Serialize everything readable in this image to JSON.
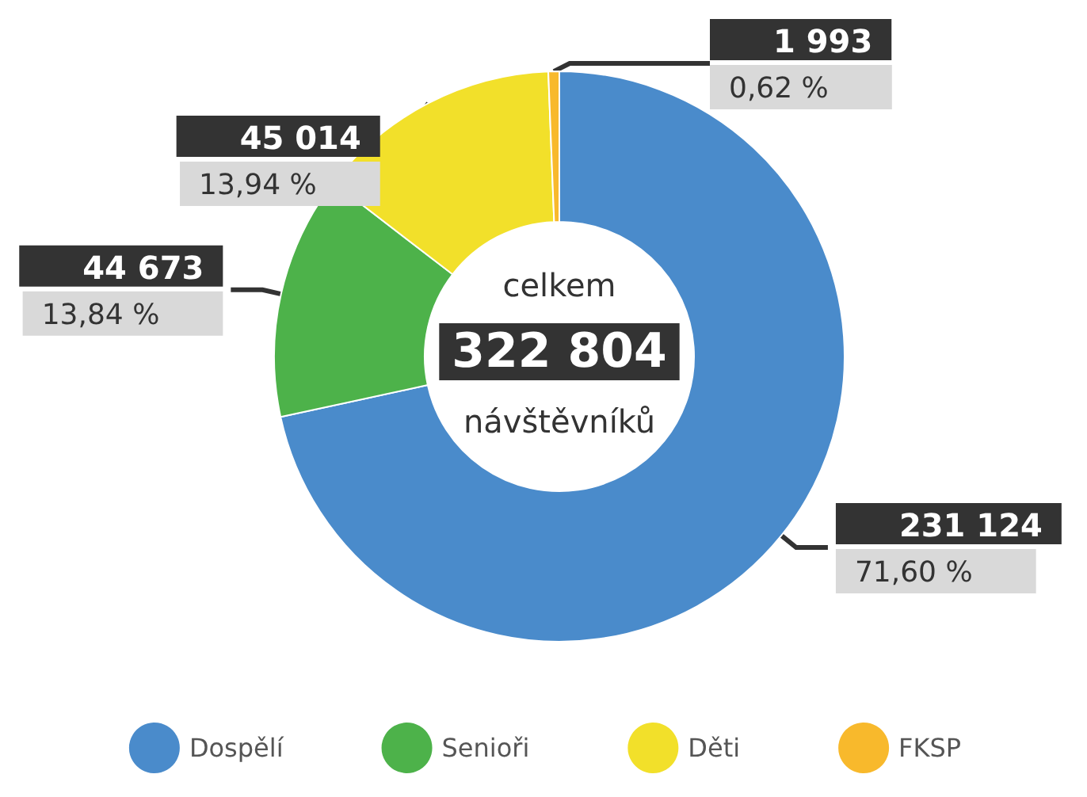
{
  "chart_data": {
    "type": "donut",
    "categories": [
      "Dospělí",
      "Senioři",
      "Děti",
      "FKSP"
    ],
    "values": [
      231124,
      44673,
      45014,
      1993
    ],
    "colors": [
      "#4a8bcb",
      "#4db24a",
      "#f2e02a",
      "#f8b92c"
    ],
    "value_labels": [
      "231 124\n71,60 %",
      "44 673\n13,84 %",
      "45 014\n13,94 %",
      "1 993\n0,62 %"
    ],
    "annotations": [
      "celkem",
      "322 804",
      "návštěvníků"
    ],
    "legend": "bottom"
  }
}
